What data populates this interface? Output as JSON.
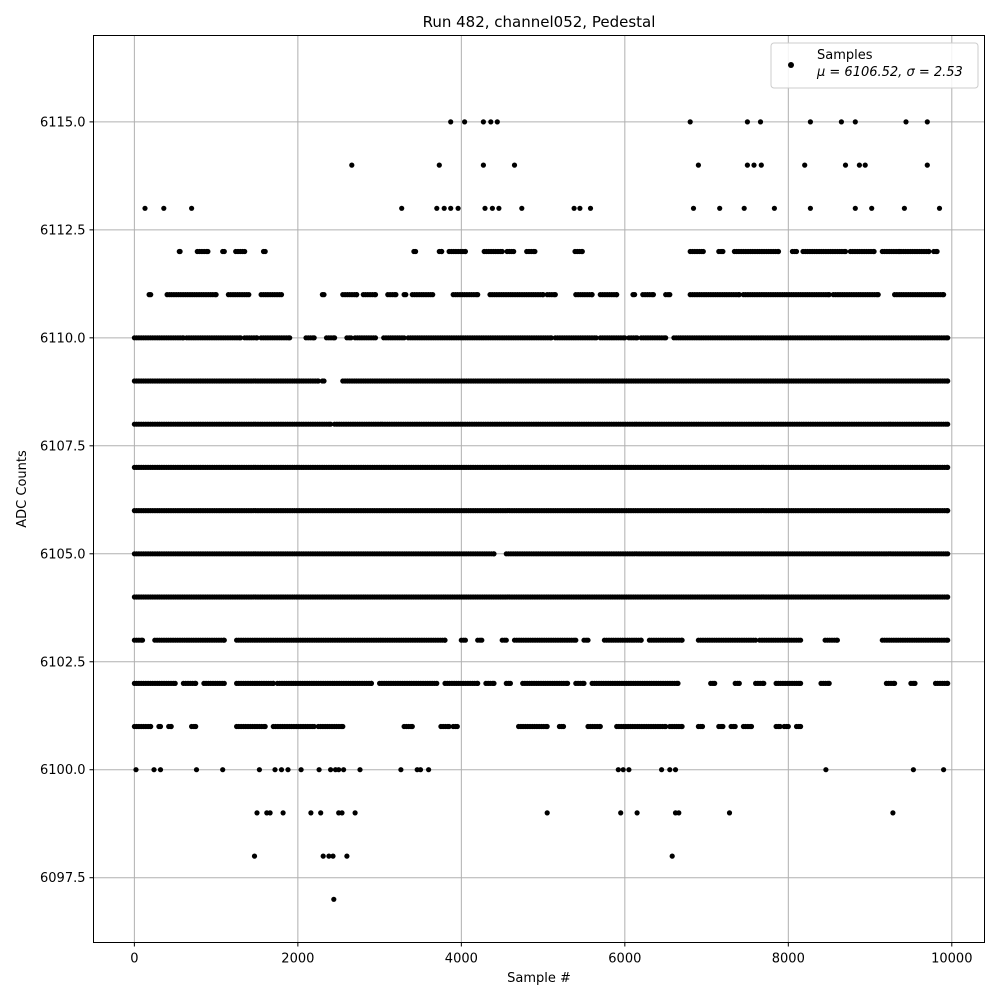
{
  "chart_data": {
    "type": "scatter",
    "title": "Run 482, channel052, Pedestal",
    "xlabel": "Sample #",
    "ylabel": "ADC Counts",
    "xlim": [
      -500,
      10400
    ],
    "ylim": [
      6096.0,
      6117.0
    ],
    "xticks": [
      0,
      2000,
      4000,
      6000,
      8000,
      10000
    ],
    "xtick_labels": [
      "0",
      "2000",
      "4000",
      "6000",
      "8000",
      "10000"
    ],
    "yticks": [
      6097.5,
      6100.0,
      6102.5,
      6105.0,
      6107.5,
      6110.0,
      6112.5,
      6115.0
    ],
    "ytick_labels": [
      "6097.5",
      "6100.0",
      "6102.5",
      "6105.0",
      "6107.5",
      "6110.0",
      "6112.5",
      "6115.0"
    ],
    "grid": true,
    "legend": {
      "placement": "top-right",
      "label": "Samples",
      "stats": "μ = 6106.52, σ = 2.53"
    },
    "marker_color": "#000000",
    "series": [
      {
        "name": "Samples",
        "points": [
          [
            1470,
            6098
          ],
          [
            2310,
            6098
          ],
          [
            2380,
            6098
          ],
          [
            2430,
            6098
          ],
          [
            2600,
            6098
          ],
          [
            6580,
            6098
          ],
          [
            2440,
            6097
          ],
          [
            1500,
            6099
          ],
          [
            1620,
            6099
          ],
          [
            1660,
            6099
          ],
          [
            1820,
            6099
          ],
          [
            2160,
            6099
          ],
          [
            2280,
            6099
          ],
          [
            2500,
            6099
          ],
          [
            2540,
            6099
          ],
          [
            2700,
            6099
          ],
          [
            5050,
            6099
          ],
          [
            5950,
            6099
          ],
          [
            6150,
            6099
          ],
          [
            6620,
            6099
          ],
          [
            6660,
            6099
          ],
          [
            7280,
            6099
          ],
          [
            9280,
            6099
          ],
          [
            20,
            6100
          ],
          [
            240,
            6100
          ],
          [
            320,
            6100
          ],
          [
            760,
            6100
          ],
          [
            1080,
            6100
          ],
          [
            1530,
            6100
          ],
          [
            1720,
            6100
          ],
          [
            1800,
            6100
          ],
          [
            1880,
            6100
          ],
          [
            2040,
            6100
          ],
          [
            2260,
            6100
          ],
          [
            2400,
            6100
          ],
          [
            2460,
            6100
          ],
          [
            2500,
            6100
          ],
          [
            2560,
            6100
          ],
          [
            2760,
            6100
          ],
          [
            3260,
            6100
          ],
          [
            3460,
            6100
          ],
          [
            3500,
            6100
          ],
          [
            3600,
            6100
          ],
          [
            5920,
            6100
          ],
          [
            5980,
            6100
          ],
          [
            6050,
            6100
          ],
          [
            6450,
            6100
          ],
          [
            6550,
            6100
          ],
          [
            6620,
            6100
          ],
          [
            8460,
            6100
          ],
          [
            9530,
            6100
          ],
          [
            9900,
            6100
          ],
          [
            130,
            6113
          ],
          [
            360,
            6113
          ],
          [
            700,
            6113
          ],
          [
            2660,
            6114
          ],
          [
            3270,
            6113
          ],
          [
            3730,
            6114
          ],
          [
            3700,
            6113
          ],
          [
            3790,
            6113
          ],
          [
            3870,
            6113
          ],
          [
            3960,
            6113
          ],
          [
            4270,
            6114
          ],
          [
            4290,
            6113
          ],
          [
            4380,
            6113
          ],
          [
            4460,
            6113
          ],
          [
            4650,
            6114
          ],
          [
            4740,
            6113
          ],
          [
            5380,
            6113
          ],
          [
            5450,
            6113
          ],
          [
            5580,
            6113
          ],
          [
            6840,
            6113
          ],
          [
            6900,
            6114
          ],
          [
            7160,
            6113
          ],
          [
            7460,
            6113
          ],
          [
            7500,
            6114
          ],
          [
            7580,
            6114
          ],
          [
            7670,
            6114
          ],
          [
            7830,
            6113
          ],
          [
            8200,
            6114
          ],
          [
            8270,
            6113
          ],
          [
            8700,
            6114
          ],
          [
            8820,
            6113
          ],
          [
            8870,
            6114
          ],
          [
            8940,
            6114
          ],
          [
            9020,
            6113
          ],
          [
            9420,
            6113
          ],
          [
            9700,
            6114
          ],
          [
            9850,
            6113
          ],
          [
            3870,
            6115
          ],
          [
            4040,
            6115
          ],
          [
            4270,
            6115
          ],
          [
            4360,
            6115
          ],
          [
            4440,
            6115
          ],
          [
            6800,
            6115
          ],
          [
            7500,
            6115
          ],
          [
            7660,
            6115
          ],
          [
            8270,
            6115
          ],
          [
            8650,
            6115
          ],
          [
            8820,
            6115
          ],
          [
            9440,
            6115
          ],
          [
            9700,
            6115
          ]
        ]
      }
    ],
    "dense_bands": [
      {
        "y": 6112,
        "segments": [
          [
            550,
            560
          ],
          [
            770,
            900
          ],
          [
            1080,
            1100
          ],
          [
            1240,
            1350
          ],
          [
            1580,
            1600
          ],
          [
            3420,
            3440
          ],
          [
            3730,
            3760
          ],
          [
            3850,
            4050
          ],
          [
            4280,
            4500
          ],
          [
            4560,
            4640
          ],
          [
            4800,
            4900
          ],
          [
            5390,
            5480
          ],
          [
            6800,
            6960
          ],
          [
            7150,
            7200
          ],
          [
            7340,
            7880
          ],
          [
            8050,
            8100
          ],
          [
            8180,
            8700
          ],
          [
            8760,
            9050
          ],
          [
            9150,
            9360
          ],
          [
            9380,
            9720
          ],
          [
            9780,
            9820
          ]
        ]
      },
      {
        "y": 6111,
        "segments": [
          [
            180,
            200
          ],
          [
            400,
            1000
          ],
          [
            1150,
            1400
          ],
          [
            1550,
            1800
          ],
          [
            2300,
            2320
          ],
          [
            2550,
            2720
          ],
          [
            2800,
            2950
          ],
          [
            3100,
            3200
          ],
          [
            3300,
            3320
          ],
          [
            3400,
            3650
          ],
          [
            3900,
            4200
          ],
          [
            4350,
            5000
          ],
          [
            5050,
            5150
          ],
          [
            5400,
            5600
          ],
          [
            5700,
            5900
          ],
          [
            6100,
            6120
          ],
          [
            6220,
            6350
          ],
          [
            6500,
            6550
          ],
          [
            6800,
            7400
          ],
          [
            7450,
            8500
          ],
          [
            8550,
            9100
          ],
          [
            9300,
            9900
          ]
        ]
      },
      {
        "y": 6110,
        "segments": [
          [
            0,
            600
          ],
          [
            640,
            1300
          ],
          [
            1350,
            1500
          ],
          [
            1550,
            1900
          ],
          [
            2100,
            2200
          ],
          [
            2350,
            2450
          ],
          [
            2600,
            2650
          ],
          [
            2700,
            2950
          ],
          [
            3050,
            3300
          ],
          [
            3350,
            5100
          ],
          [
            5150,
            5650
          ],
          [
            5700,
            6000
          ],
          [
            6050,
            6150
          ],
          [
            6200,
            6500
          ],
          [
            6600,
            9950
          ]
        ]
      },
      {
        "y": 6109,
        "segments": [
          [
            0,
            2250
          ],
          [
            2300,
            2320
          ],
          [
            2550,
            9950
          ]
        ]
      },
      {
        "y": 6108,
        "segments": [
          [
            0,
            2400
          ],
          [
            2450,
            9950
          ]
        ]
      },
      {
        "y": 6107,
        "segments": [
          [
            0,
            9950
          ]
        ]
      },
      {
        "y": 6106,
        "segments": [
          [
            0,
            9950
          ]
        ]
      },
      {
        "y": 6105,
        "segments": [
          [
            0,
            4400
          ],
          [
            4550,
            9950
          ]
        ]
      },
      {
        "y": 6104,
        "segments": [
          [
            0,
            9950
          ]
        ]
      },
      {
        "y": 6103,
        "segments": [
          [
            0,
            100
          ],
          [
            250,
            1100
          ],
          [
            1250,
            3800
          ],
          [
            4000,
            4050
          ],
          [
            4200,
            4250
          ],
          [
            4500,
            4550
          ],
          [
            4650,
            5400
          ],
          [
            5500,
            5550
          ],
          [
            5750,
            6200
          ],
          [
            6300,
            6700
          ],
          [
            6900,
            7600
          ],
          [
            7650,
            8150
          ],
          [
            8450,
            8600
          ],
          [
            9150,
            9950
          ]
        ]
      },
      {
        "y": 6102,
        "segments": [
          [
            0,
            500
          ],
          [
            600,
            750
          ],
          [
            850,
            1100
          ],
          [
            1250,
            1700
          ],
          [
            1750,
            2900
          ],
          [
            3000,
            3700
          ],
          [
            3800,
            4200
          ],
          [
            4300,
            4400
          ],
          [
            4550,
            4600
          ],
          [
            4750,
            5300
          ],
          [
            5400,
            5500
          ],
          [
            5600,
            6650
          ],
          [
            7050,
            7100
          ],
          [
            7350,
            7400
          ],
          [
            7600,
            7700
          ],
          [
            7850,
            8150
          ],
          [
            8400,
            8500
          ],
          [
            9200,
            9300
          ],
          [
            9500,
            9550
          ],
          [
            9800,
            9950
          ]
        ]
      },
      {
        "y": 6101,
        "segments": [
          [
            0,
            200
          ],
          [
            300,
            320
          ],
          [
            420,
            450
          ],
          [
            700,
            750
          ],
          [
            1250,
            1600
          ],
          [
            1700,
            2200
          ],
          [
            2250,
            2550
          ],
          [
            3300,
            3400
          ],
          [
            3750,
            3850
          ],
          [
            3900,
            3950
          ],
          [
            4700,
            5050
          ],
          [
            5200,
            5250
          ],
          [
            5550,
            5700
          ],
          [
            5900,
            6500
          ],
          [
            6550,
            6700
          ],
          [
            6900,
            6950
          ],
          [
            7150,
            7200
          ],
          [
            7300,
            7350
          ],
          [
            7450,
            7550
          ],
          [
            7850,
            7900
          ],
          [
            7950,
            8000
          ],
          [
            8100,
            8150
          ]
        ]
      }
    ]
  }
}
